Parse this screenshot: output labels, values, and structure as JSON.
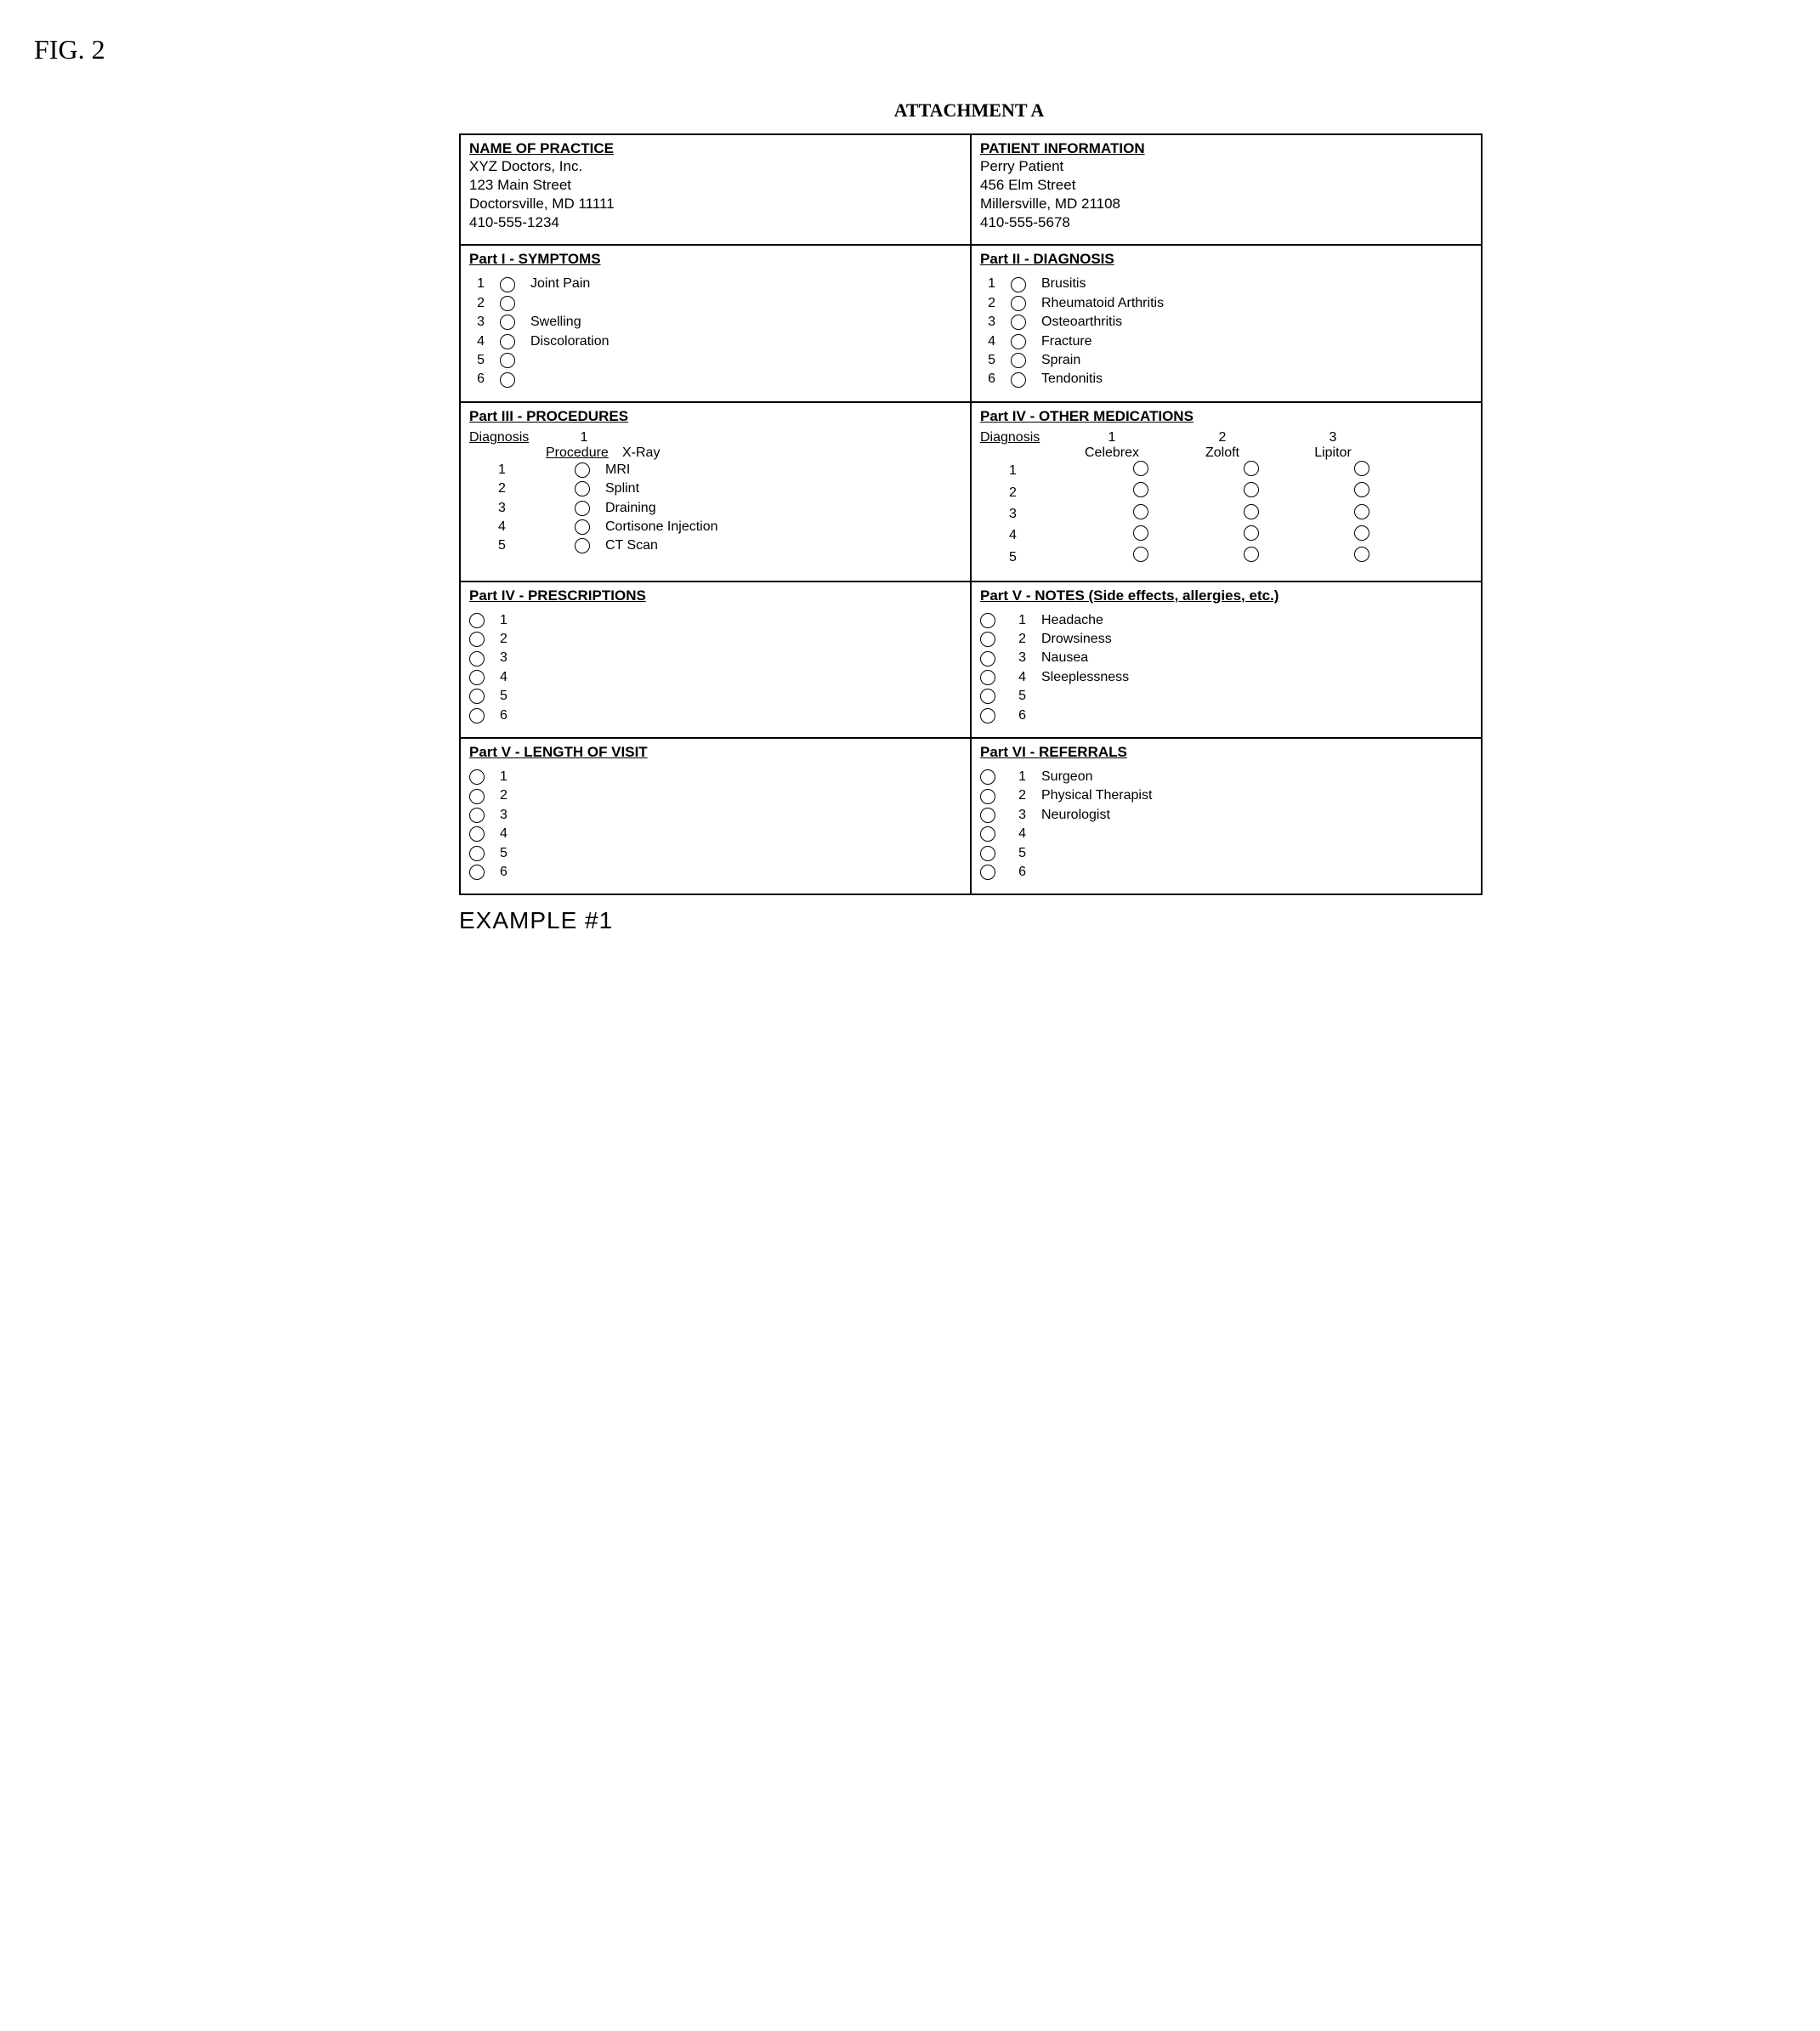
{
  "figure_label": "FIG. 2",
  "attachment_header": "ATTACHMENT A",
  "example_footnote": "EXAMPLE #1",
  "practice_header": {
    "title": "NAME OF PRACTICE",
    "name": "XYZ Doctors, Inc.",
    "addr1": "123 Main Street",
    "addr2": "Doctorsville, MD  11111",
    "phone": "410-555-1234"
  },
  "patient_header": {
    "title": "PATIENT INFORMATION",
    "name": "Perry Patient",
    "addr1": "456 Elm Street",
    "addr2": "Millersville, MD  21108",
    "phone": "410-555-5678"
  },
  "part1": {
    "title": "Part I - SYMPTOMS",
    "items": [
      "Joint Pain",
      "",
      "Swelling",
      "Discoloration",
      "",
      ""
    ]
  },
  "part2": {
    "title": "Part II - DIAGNOSIS",
    "items": [
      "Brusitis",
      "Rheumatoid Arthritis",
      "Osteoarthritis",
      "Fracture",
      "Sprain",
      "Tendonitis"
    ]
  },
  "part3": {
    "title": "Part III - PROCEDURES",
    "diagnosis_label": "Diagnosis",
    "procedure_label": "Procedure",
    "col_headers": [
      "1"
    ],
    "procedures": [
      "X-Ray",
      "MRI",
      "Splint",
      "Draining",
      "Cortisone Injection",
      "CT Scan"
    ]
  },
  "part4_meds": {
    "title": "Part IV - OTHER MEDICATIONS",
    "diagnosis_label": "Diagnosis",
    "col_headers": [
      "1",
      "2",
      "3"
    ],
    "medications": [
      "Celebrex",
      "Zoloft",
      "Lipitor"
    ]
  },
  "part4_rx": {
    "title": "Part IV - PRESCRIPTIONS"
  },
  "part5_notes": {
    "title": "Part V - NOTES (Side effects, allergies, etc.)",
    "items": [
      "Headache",
      "Drowsiness",
      "Nausea",
      "Sleeplessness",
      "",
      ""
    ]
  },
  "part5_length": {
    "title": "Part V - LENGTH OF VISIT"
  },
  "part6": {
    "title": "Part VI - REFERRALS",
    "items": [
      "Surgeon",
      "Physical Therapist",
      "Neurologist",
      "",
      "",
      ""
    ]
  }
}
